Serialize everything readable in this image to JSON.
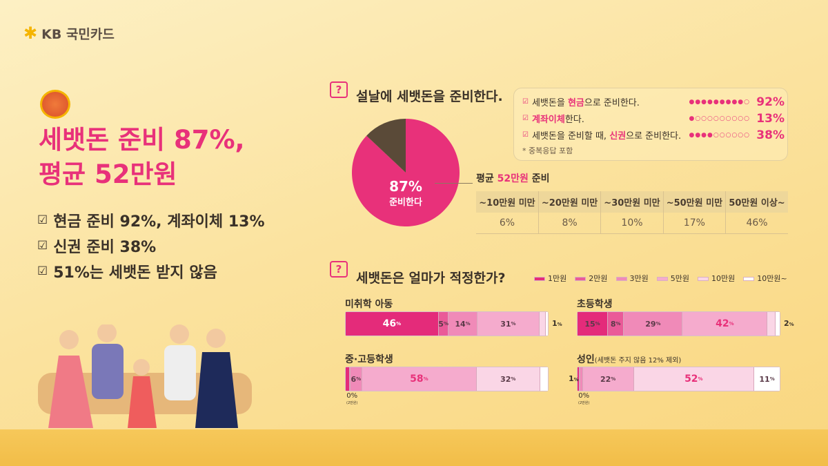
{
  "brand": "KB 국민카드",
  "headline": {
    "line1": "세뱃돈 준비 87%,",
    "line2": "평균 52만원"
  },
  "bullets": [
    "현금 준비 92%, 계좌이체 13%",
    "신권 준비 38%",
    "51%는 세뱃돈 받지 않음"
  ],
  "section1": {
    "title": "설날에 세뱃돈을 준비한다.",
    "pie_label": "87%",
    "pie_sub": "준비한다",
    "details": [
      {
        "pre": "세뱃돈을 ",
        "hl": "현금",
        "post": "으로 준비한다.",
        "pct": "92%",
        "value": 92
      },
      {
        "pre": "",
        "hl": "계좌이체",
        "post": "한다.",
        "pct": "13%",
        "value": 13
      },
      {
        "pre": "세뱃돈을 준비할 때, ",
        "hl": "신권",
        "post": "으로 준비한다.",
        "pct": "38%",
        "value": 38
      }
    ],
    "note": "* 중복응답 포함",
    "avg": {
      "pre": "평균 ",
      "hl": "52만원",
      "post": " 준비"
    },
    "table": {
      "headers": [
        "~10만원 미만",
        "~20만원 미만",
        "~30만원 미만",
        "~50만원 미만",
        "50만원 이상~"
      ],
      "values": [
        "6%",
        "8%",
        "10%",
        "17%",
        "46%"
      ]
    }
  },
  "section2": {
    "title": "세뱃돈은 얼마가 적정한가?",
    "adult_note": "(세뱃돈 주지 않음 12% 제외)",
    "zero_label": "0%",
    "zero_sub": "(2만원)"
  },
  "chart_data": [
    {
      "type": "pie",
      "values": [
        87,
        13
      ],
      "labels": [
        "준비한다",
        ""
      ],
      "colors": [
        "#e8317a",
        "#5a4a38"
      ]
    },
    {
      "type": "bar",
      "stacked": true,
      "orientation": "horizontal",
      "categories": [
        "1만원",
        "2만원",
        "3만원",
        "5만원",
        "10만원",
        "10만원~"
      ],
      "colors": [
        "#e42b7a",
        "#ea5a98",
        "#f08ab8",
        "#f5abcd",
        "#fad6e6",
        "#ffffff"
      ],
      "legend": "top-right",
      "series": [
        {
          "name": "미취학 아동",
          "values": [
            46,
            5,
            14,
            31,
            3,
            1
          ]
        },
        {
          "name": "초등학생",
          "values": [
            15,
            8,
            29,
            42,
            4,
            2
          ]
        },
        {
          "name": "중·고등학생",
          "values": [
            2,
            0,
            6,
            58,
            32,
            4
          ]
        },
        {
          "name": "성인",
          "values": [
            1,
            0,
            1,
            22,
            52,
            11
          ]
        }
      ]
    }
  ]
}
